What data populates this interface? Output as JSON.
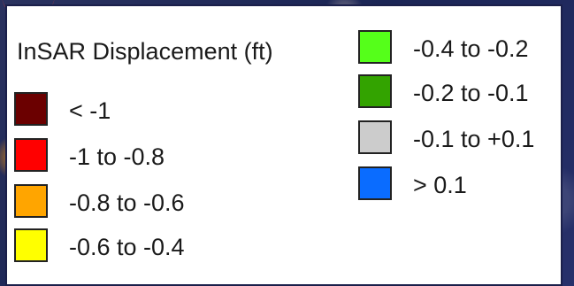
{
  "legend": {
    "title": "InSAR Displacement (ft)",
    "items": [
      {
        "label": "< -1",
        "color": "#6b0000"
      },
      {
        "label": "-1 to -0.8",
        "color": "#ff0000"
      },
      {
        "label": "-0.8 to -0.6",
        "color": "#ffa500"
      },
      {
        "label": "-0.6 to -0.4",
        "color": "#ffff00"
      },
      {
        "label": "-0.4 to -0.2",
        "color": "#55ff1a"
      },
      {
        "label": "-0.2 to -0.1",
        "color": "#33a300"
      },
      {
        "label": "-0.1 to +0.1",
        "color": "#cccccc"
      },
      {
        "label": "> 0.1",
        "color": "#0a6cff"
      }
    ]
  }
}
